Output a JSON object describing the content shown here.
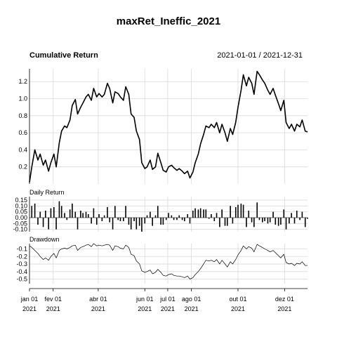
{
  "chart_data": {
    "type": "line",
    "title": "maxRet_Ineffic_2021",
    "date_range_label": "2021-01-01 / 2021-12-31",
    "x_range": [
      "2021-01-01",
      "2021-12-31"
    ],
    "x_ticks": [
      {
        "date": "2021-01-01",
        "month": "jan 01",
        "year": "2021"
      },
      {
        "date": "2021-02-01",
        "month": "fev 01",
        "year": "2021"
      },
      {
        "date": "2021-04-01",
        "month": "abr 01",
        "year": "2021"
      },
      {
        "date": "2021-06-01",
        "month": "jun 01",
        "year": "2021"
      },
      {
        "date": "2021-07-01",
        "month": "jul 01",
        "year": "2021"
      },
      {
        "date": "2021-08-01",
        "month": "ago 01",
        "year": "2021"
      },
      {
        "date": "2021-10-01",
        "month": "out 01",
        "year": "2021"
      },
      {
        "date": "2021-12-01",
        "month": "dez 01",
        "year": "2021"
      }
    ],
    "grid": true,
    "panels": [
      {
        "id": "cumulative",
        "label": "Cumulative Return",
        "ylim": [
          0.0,
          1.35
        ],
        "yticks": [
          0.2,
          0.4,
          0.6,
          0.8,
          1.0,
          1.2
        ],
        "ytick_labels": [
          "0.2",
          "0.4",
          "0.6",
          "0.8",
          "1.0",
          "1.2"
        ],
        "series": {
          "x": [
            "2021-01-01",
            "2021-01-04",
            "2021-01-08",
            "2021-01-12",
            "2021-01-15",
            "2021-01-19",
            "2021-01-22",
            "2021-01-26",
            "2021-01-29",
            "2021-02-02",
            "2021-02-05",
            "2021-02-09",
            "2021-02-12",
            "2021-02-16",
            "2021-02-19",
            "2021-02-23",
            "2021-02-26",
            "2021-03-02",
            "2021-03-05",
            "2021-03-09",
            "2021-03-12",
            "2021-03-16",
            "2021-03-19",
            "2021-03-23",
            "2021-03-26",
            "2021-03-30",
            "2021-04-02",
            "2021-04-06",
            "2021-04-09",
            "2021-04-13",
            "2021-04-16",
            "2021-04-20",
            "2021-04-23",
            "2021-04-27",
            "2021-04-30",
            "2021-05-04",
            "2021-05-07",
            "2021-05-11",
            "2021-05-14",
            "2021-05-18",
            "2021-05-21",
            "2021-05-25",
            "2021-05-28",
            "2021-06-01",
            "2021-06-04",
            "2021-06-08",
            "2021-06-11",
            "2021-06-15",
            "2021-06-18",
            "2021-06-22",
            "2021-06-25",
            "2021-06-29",
            "2021-07-02",
            "2021-07-06",
            "2021-07-09",
            "2021-07-13",
            "2021-07-16",
            "2021-07-20",
            "2021-07-23",
            "2021-07-27",
            "2021-07-30",
            "2021-08-03",
            "2021-08-06",
            "2021-08-10",
            "2021-08-13",
            "2021-08-17",
            "2021-08-20",
            "2021-08-24",
            "2021-08-27",
            "2021-08-31",
            "2021-09-03",
            "2021-09-07",
            "2021-09-10",
            "2021-09-14",
            "2021-09-17",
            "2021-09-21",
            "2021-09-24",
            "2021-09-28",
            "2021-10-01",
            "2021-10-05",
            "2021-10-08",
            "2021-10-12",
            "2021-10-15",
            "2021-10-19",
            "2021-10-22",
            "2021-10-26",
            "2021-10-29",
            "2021-11-02",
            "2021-11-05",
            "2021-11-09",
            "2021-11-12",
            "2021-11-16",
            "2021-11-19",
            "2021-11-23",
            "2021-11-26",
            "2021-11-30",
            "2021-12-03",
            "2021-12-07",
            "2021-12-10",
            "2021-12-14",
            "2021-12-17",
            "2021-12-21",
            "2021-12-24",
            "2021-12-28",
            "2021-12-31"
          ],
          "y": [
            0.02,
            0.2,
            0.4,
            0.28,
            0.35,
            0.22,
            0.28,
            0.15,
            0.25,
            0.35,
            0.2,
            0.48,
            0.62,
            0.68,
            0.66,
            0.75,
            0.92,
            0.99,
            0.82,
            0.9,
            0.95,
            1.02,
            1.05,
            0.98,
            1.12,
            1.02,
            1.06,
            1.02,
            1.05,
            1.18,
            1.12,
            0.95,
            1.08,
            1.06,
            1.02,
            0.98,
            1.14,
            1.05,
            0.82,
            0.78,
            0.62,
            0.52,
            0.25,
            0.18,
            0.2,
            0.28,
            0.17,
            0.2,
            0.36,
            0.25,
            0.16,
            0.14,
            0.2,
            0.22,
            0.19,
            0.16,
            0.18,
            0.15,
            0.12,
            0.15,
            0.07,
            0.14,
            0.25,
            0.35,
            0.47,
            0.58,
            0.68,
            0.66,
            0.7,
            0.66,
            0.72,
            0.6,
            0.7,
            0.6,
            0.5,
            0.65,
            0.58,
            0.72,
            0.9,
            1.1,
            1.28,
            1.15,
            1.25,
            1.18,
            1.05,
            1.32,
            1.28,
            1.22,
            1.18,
            1.1,
            1.05,
            1.12,
            1.04,
            0.94,
            0.86,
            0.98,
            0.72,
            0.65,
            0.7,
            0.62,
            0.7,
            0.67,
            0.75,
            0.62,
            0.61
          ]
        }
      },
      {
        "id": "daily",
        "label": "Daily Return",
        "ylim": [
          -0.12,
          0.18
        ],
        "yticks": [
          0.15,
          0.1,
          0.05,
          0.0,
          -0.05,
          -0.1
        ],
        "ytick_labels": [
          "0.15",
          "0.10",
          "0.05",
          "0.00",
          "-0.05",
          "-0.10"
        ],
        "series": {
          "x": [
            "2021-01-04",
            "2021-01-08",
            "2021-01-12",
            "2021-01-15",
            "2021-01-19",
            "2021-01-22",
            "2021-01-26",
            "2021-01-29",
            "2021-02-02",
            "2021-02-05",
            "2021-02-09",
            "2021-02-12",
            "2021-02-16",
            "2021-02-19",
            "2021-02-23",
            "2021-02-26",
            "2021-03-02",
            "2021-03-05",
            "2021-03-09",
            "2021-03-12",
            "2021-03-16",
            "2021-03-19",
            "2021-03-23",
            "2021-03-26",
            "2021-03-30",
            "2021-04-02",
            "2021-04-06",
            "2021-04-09",
            "2021-04-13",
            "2021-04-16",
            "2021-04-20",
            "2021-04-23",
            "2021-04-27",
            "2021-04-30",
            "2021-05-04",
            "2021-05-07",
            "2021-05-11",
            "2021-05-14",
            "2021-05-18",
            "2021-05-21",
            "2021-05-25",
            "2021-05-28",
            "2021-06-01",
            "2021-06-04",
            "2021-06-08",
            "2021-06-11",
            "2021-06-15",
            "2021-06-18",
            "2021-06-22",
            "2021-06-25",
            "2021-06-29",
            "2021-07-02",
            "2021-07-06",
            "2021-07-09",
            "2021-07-13",
            "2021-07-16",
            "2021-07-20",
            "2021-07-23",
            "2021-07-27",
            "2021-07-30",
            "2021-08-03",
            "2021-08-06",
            "2021-08-10",
            "2021-08-13",
            "2021-08-17",
            "2021-08-20",
            "2021-08-24",
            "2021-08-27",
            "2021-08-31",
            "2021-09-03",
            "2021-09-07",
            "2021-09-10",
            "2021-09-14",
            "2021-09-17",
            "2021-09-21",
            "2021-09-24",
            "2021-09-28",
            "2021-10-01",
            "2021-10-05",
            "2021-10-08",
            "2021-10-12",
            "2021-10-15",
            "2021-10-19",
            "2021-10-22",
            "2021-10-26",
            "2021-10-29",
            "2021-11-02",
            "2021-11-05",
            "2021-11-09",
            "2021-11-12",
            "2021-11-16",
            "2021-11-19",
            "2021-11-23",
            "2021-11-26",
            "2021-11-30",
            "2021-12-03",
            "2021-12-07",
            "2021-12-10",
            "2021-12-14",
            "2021-12-17",
            "2021-12-21",
            "2021-12-24",
            "2021-12-28",
            "2021-12-31"
          ],
          "y": [
            0.1,
            0.12,
            -0.06,
            0.05,
            -0.08,
            0.06,
            -0.1,
            0.08,
            0.09,
            -0.1,
            0.14,
            0.1,
            0.04,
            -0.02,
            0.07,
            0.12,
            0.05,
            -0.1,
            0.06,
            0.04,
            0.05,
            0.03,
            -0.05,
            0.08,
            -0.06,
            0.03,
            -0.03,
            0.02,
            0.09,
            -0.04,
            -0.1,
            0.1,
            -0.02,
            -0.03,
            -0.03,
            0.1,
            -0.06,
            -0.1,
            -0.03,
            -0.1,
            -0.07,
            -0.12,
            -0.05,
            0.02,
            0.05,
            -0.07,
            0.02,
            0.1,
            -0.06,
            -0.06,
            -0.02,
            0.04,
            0.02,
            -0.02,
            -0.02,
            0.02,
            -0.02,
            -0.03,
            0.03,
            -0.05,
            0.06,
            0.08,
            0.07,
            0.08,
            0.07,
            0.07,
            -0.01,
            0.03,
            -0.03,
            0.04,
            -0.08,
            0.07,
            -0.07,
            -0.07,
            0.1,
            -0.05,
            0.09,
            0.11,
            0.12,
            0.11,
            -0.08,
            0.06,
            -0.04,
            -0.08,
            0.13,
            -0.02,
            -0.04,
            -0.03,
            -0.05,
            -0.04,
            0.05,
            -0.06,
            -0.07,
            -0.06,
            0.07,
            -0.1,
            -0.05,
            0.04,
            -0.05,
            0.06,
            -0.02,
            0.05,
            -0.08,
            -0.01
          ]
        }
      },
      {
        "id": "drawdown",
        "label": "Drawdown",
        "ylim": [
          -0.56,
          -0.03
        ],
        "yticks": [
          -0.1,
          -0.2,
          -0.3,
          -0.4,
          -0.5
        ],
        "ytick_labels": [
          "-0.1",
          "-0.2",
          "-0.3",
          "-0.4",
          "-0.5"
        ],
        "series": {
          "x": [
            "2021-01-01",
            "2021-01-04",
            "2021-01-08",
            "2021-01-12",
            "2021-01-15",
            "2021-01-19",
            "2021-01-22",
            "2021-01-26",
            "2021-01-29",
            "2021-02-02",
            "2021-02-05",
            "2021-02-09",
            "2021-02-12",
            "2021-02-16",
            "2021-02-19",
            "2021-02-23",
            "2021-02-26",
            "2021-03-02",
            "2021-03-05",
            "2021-03-09",
            "2021-03-12",
            "2021-03-16",
            "2021-03-19",
            "2021-03-23",
            "2021-03-26",
            "2021-03-30",
            "2021-04-02",
            "2021-04-06",
            "2021-04-09",
            "2021-04-13",
            "2021-04-16",
            "2021-04-20",
            "2021-04-23",
            "2021-04-27",
            "2021-04-30",
            "2021-05-04",
            "2021-05-07",
            "2021-05-11",
            "2021-05-14",
            "2021-05-18",
            "2021-05-21",
            "2021-05-25",
            "2021-05-28",
            "2021-06-01",
            "2021-06-04",
            "2021-06-08",
            "2021-06-11",
            "2021-06-15",
            "2021-06-18",
            "2021-06-22",
            "2021-06-25",
            "2021-06-29",
            "2021-07-02",
            "2021-07-06",
            "2021-07-09",
            "2021-07-13",
            "2021-07-16",
            "2021-07-20",
            "2021-07-23",
            "2021-07-27",
            "2021-07-30",
            "2021-08-03",
            "2021-08-06",
            "2021-08-10",
            "2021-08-13",
            "2021-08-17",
            "2021-08-20",
            "2021-08-24",
            "2021-08-27",
            "2021-08-31",
            "2021-09-03",
            "2021-09-07",
            "2021-09-10",
            "2021-09-14",
            "2021-09-17",
            "2021-09-21",
            "2021-09-24",
            "2021-09-28",
            "2021-10-01",
            "2021-10-05",
            "2021-10-08",
            "2021-10-12",
            "2021-10-15",
            "2021-10-19",
            "2021-10-22",
            "2021-10-26",
            "2021-10-29",
            "2021-11-02",
            "2021-11-05",
            "2021-11-09",
            "2021-11-12",
            "2021-11-16",
            "2021-11-19",
            "2021-11-23",
            "2021-11-26",
            "2021-11-30",
            "2021-12-03",
            "2021-12-07",
            "2021-12-10",
            "2021-12-14",
            "2021-12-17",
            "2021-12-21",
            "2021-12-24",
            "2021-12-28",
            "2021-12-31"
          ],
          "y": [
            -0.06,
            -0.08,
            -0.12,
            -0.16,
            -0.2,
            -0.24,
            -0.22,
            -0.25,
            -0.2,
            -0.16,
            -0.22,
            -0.12,
            -0.1,
            -0.09,
            -0.1,
            -0.08,
            -0.06,
            -0.05,
            -0.12,
            -0.08,
            -0.07,
            -0.05,
            -0.04,
            -0.07,
            -0.03,
            -0.06,
            -0.05,
            -0.06,
            -0.05,
            -0.04,
            -0.05,
            -0.12,
            -0.06,
            -0.07,
            -0.09,
            -0.1,
            -0.05,
            -0.08,
            -0.17,
            -0.19,
            -0.26,
            -0.3,
            -0.39,
            -0.41,
            -0.4,
            -0.38,
            -0.43,
            -0.41,
            -0.37,
            -0.41,
            -0.45,
            -0.46,
            -0.44,
            -0.43,
            -0.45,
            -0.46,
            -0.46,
            -0.47,
            -0.48,
            -0.46,
            -0.5,
            -0.48,
            -0.44,
            -0.4,
            -0.36,
            -0.3,
            -0.25,
            -0.26,
            -0.25,
            -0.27,
            -0.24,
            -0.3,
            -0.25,
            -0.3,
            -0.34,
            -0.27,
            -0.3,
            -0.24,
            -0.18,
            -0.12,
            -0.06,
            -0.1,
            -0.07,
            -0.09,
            -0.14,
            -0.04,
            -0.06,
            -0.08,
            -0.1,
            -0.12,
            -0.14,
            -0.12,
            -0.15,
            -0.19,
            -0.22,
            -0.17,
            -0.28,
            -0.3,
            -0.29,
            -0.32,
            -0.29,
            -0.3,
            -0.27,
            -0.32,
            -0.32
          ]
        }
      }
    ]
  }
}
